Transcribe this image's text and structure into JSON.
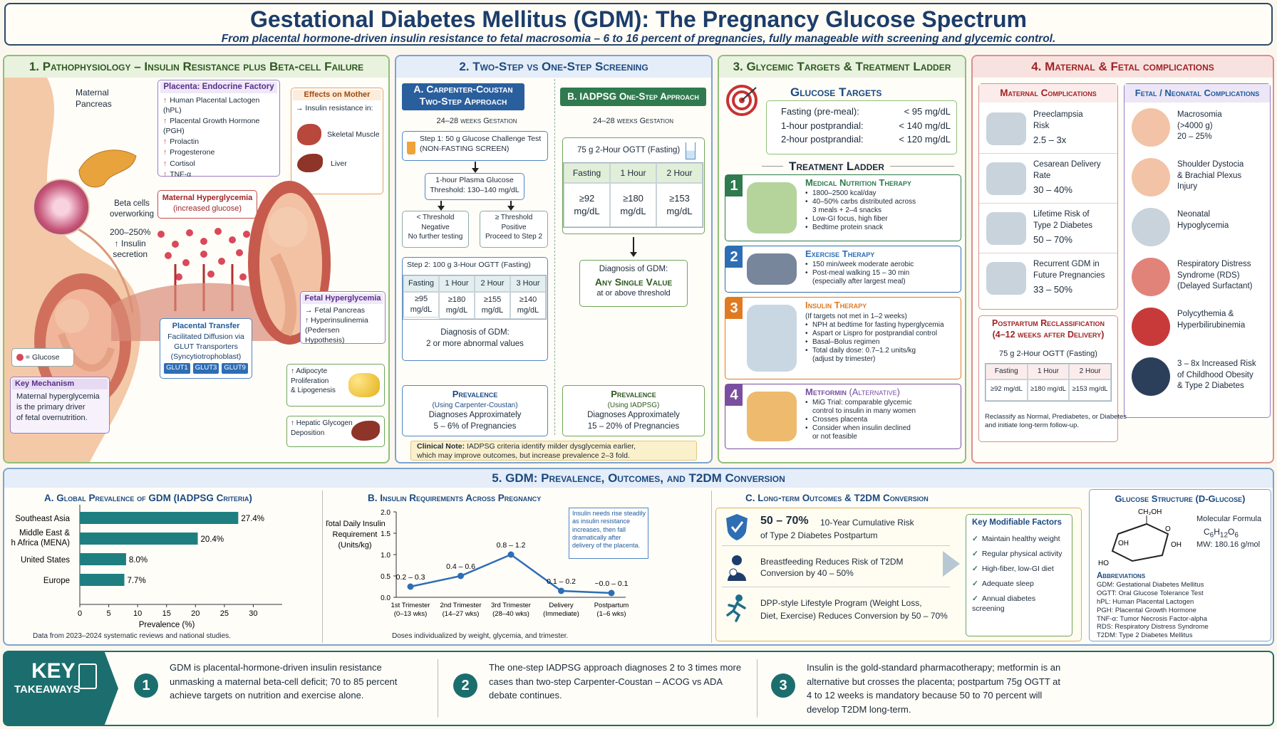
{
  "header": {
    "title": "Gestational Diabetes Mellitus (GDM): The Pregnancy Glucose Spectrum",
    "subtitle": "From placental hormone-driven insulin resistance to fetal macrosomia – 6 to 16 percent of pregnancies, fully manageable with screening and glycemic control."
  },
  "colors": {
    "green": "#5f9a4a",
    "blue": "#2d6eb5",
    "teal": "#1c6e6e",
    "red": "#b83c3c",
    "purple": "#7a4fa0",
    "orange": "#e07a22"
  },
  "p1": {
    "title": "1. Pathophysiology – Insulin Resistance plus Beta-cell Failure",
    "maternal_pancreas": "Maternal\nPancreas",
    "beta_cells": "Beta cells\noverworking",
    "insulin_sec": "200–250%\n↑ Insulin\nsecretion",
    "placenta_title": "Placenta: Endocrine Factory",
    "placenta_items": [
      "Human Placental Lactogen (hPL)",
      "Placental Growth Hormone (PGH)",
      "Prolactin",
      "Progesterone",
      "Cortisol",
      "TNF-α"
    ],
    "effects_title": "Effects on Mother",
    "effects_sub": "→ Insulin resistance in:",
    "effects_items": [
      "Skeletal Muscle",
      "Liver"
    ],
    "hyper_title": "Maternal Hyperglycemia",
    "hyper_sub": "(increased glucose)",
    "transfer_title": "Placental Transfer",
    "transfer_text": "Facilitated Diffusion via\nGLUT Transporters\n(Syncytiotrophoblast)",
    "gluts": [
      "GLUT1",
      "GLUT3",
      "GLUT9"
    ],
    "glucose_legend": "= Glucose",
    "key_title": "Key Mechanism",
    "key_text": "Maternal hyperglycemia\nis the primary driver\nof fetal overnutrition.",
    "fetal_title": "Fetal Hyperglycemia",
    "fetal_items": [
      "→ Fetal Pancreas",
      "↑ Hyperinsulinemia",
      "(Pedersen Hypothesis)"
    ],
    "adipo": "↑ Adipocyte\nProliferation\n& Lipogenesis",
    "hepatic": "↑ Hepatic Glycogen\nDeposition"
  },
  "p2": {
    "title": "2. Two-Step vs One-Step Screening",
    "a_title": "A. Carpenter-Coustan\nTwo-Step Approach",
    "a_weeks": "24–28 weeks Gestation",
    "step1": "Step 1: 50 g Glucose Challenge Test",
    "step1_sub": "(NON-FASTING SCREEN)",
    "threshold": "1-hour Plasma Glucose\nThreshold: 130–140 mg/dL",
    "neg": "< Threshold\nNegative\nNo further testing",
    "pos": "≥ Threshold\nPositive\nProceed to Step 2",
    "step2": "Step 2: 100 g 3-Hour OGTT (Fasting)",
    "step2_head": [
      "Fasting",
      "1 Hour",
      "2 Hour",
      "3 Hour"
    ],
    "step2_vals": [
      "≥95\nmg/dL",
      "≥180\nmg/dL",
      "≥155\nmg/dL",
      "≥140\nmg/dL"
    ],
    "step2_dx": "Diagnosis of GDM:\n2 or more abnormal values",
    "prev_a_title": "Prevalence",
    "prev_a_sub": "(Using Carpenter-Coustan)",
    "prev_a_text": "Diagnoses Approximately\n5 – 6% of Pregnancies",
    "b_title": "B. IADPSG One-Step Approach",
    "b_weeks": "24–28 weeks Gestation",
    "ogtt": "75 g 2-Hour OGTT (Fasting)",
    "b_head": [
      "Fasting",
      "1 Hour",
      "2 Hour"
    ],
    "b_vals": [
      "≥92\nmg/dL",
      "≥180\nmg/dL",
      "≥153\nmg/dL"
    ],
    "b_dx_top": "Diagnosis of GDM:",
    "b_dx_main": "Any Single Value",
    "b_dx_bot": "at or above threshold",
    "prev_b_title": "Prevalence",
    "prev_b_sub": "(Using IADPSG)",
    "prev_b_text": "Diagnoses Approximately\n15 – 20% of Pregnancies",
    "note_label": "Clinical Note:",
    "note": " IADPSG criteria identify milder dysglycemia earlier,\nwhich may improve outcomes, but increase prevalence 2–3 fold."
  },
  "p3": {
    "title": "3. Glycemic Targets & Treatment Ladder",
    "targets_title": "Glucose Targets",
    "targets": [
      {
        "l": "Fasting (pre-meal):",
        "v": "< 95 mg/dL"
      },
      {
        "l": "1-hour postprandial:",
        "v": "< 140 mg/dL"
      },
      {
        "l": "2-hour postprandial:",
        "v": "< 120 mg/dL"
      }
    ],
    "ladder_title": "Treatment Ladder",
    "steps": [
      {
        "n": "1",
        "title": "Medical Nutrition Therapy",
        "items": [
          "1800–2500 kcal/day",
          "40–50% carbs distributed across\n3 meals + 2–4 snacks",
          "Low-GI focus, high fiber",
          "Bedtime protein snack"
        ]
      },
      {
        "n": "2",
        "title": "Exercise Therapy",
        "items": [
          "150 min/week moderate aerobic",
          "Post-meal walking 15 – 30 min\n(especially after largest meal)"
        ]
      },
      {
        "n": "3",
        "title": "Insulin Therapy",
        "sub": "(If targets not met in 1–2 weeks)",
        "items": [
          "NPH at bedtime for fasting hyperglycemia",
          "Aspart or Lispro for postprandial control",
          "Basal–Bolus regimen",
          "Total daily dose: 0.7–1.2 units/kg\n(adjust by trimester)"
        ]
      },
      {
        "n": "4",
        "title": "Metformin",
        "title2": " (Alternative)",
        "items": [
          "MiG Trial: comparable glycemic\ncontrol to insulin in many women",
          "Crosses placenta",
          "Consider when insulin declined\nor not feasible"
        ]
      }
    ]
  },
  "p4": {
    "title": "4. Maternal & Fetal complications",
    "mat_title": "Maternal Complications",
    "mat": [
      {
        "t": "Preeclampsia\nRisk",
        "v": "2.5 – 3x",
        "icon": "blood-pressure-cuff-icon"
      },
      {
        "t": "Cesarean Delivery\nRate",
        "v": "30 – 40%",
        "icon": "scalpel-icon"
      },
      {
        "t": "Lifetime Risk of\nType 2 Diabetes",
        "v": "50 – 70%",
        "icon": "glucometer-icon"
      },
      {
        "t": "Recurrent GDM in\nFuture Pregnancies",
        "v": "33 – 50%",
        "icon": "recurrence-arrows-icon"
      }
    ],
    "fet_title": "Fetal / Neonatal Complications",
    "fet": [
      {
        "t": "Macrosomia\n(>4000 g)\n20 – 25%",
        "icon": "baby-icon"
      },
      {
        "t": "Shoulder Dystocia\n& Brachial Plexus\nInjury",
        "icon": "shoulder-icon"
      },
      {
        "t": "Neonatal\nHypoglycemia",
        "icon": "glucometer-icon"
      },
      {
        "t": "Respiratory Distress\nSyndrome (RDS)\n(Delayed Surfactant)",
        "icon": "lungs-icon"
      },
      {
        "t": "Polycythemia &\nHyperbilirubinemia",
        "icon": "red-cells-icon"
      },
      {
        "t": "3 – 8x Increased Risk\nof Childhood Obesity\n& Type 2 Diabetes",
        "icon": "child-icon"
      }
    ],
    "pp_title": "Postpartum Reclassification\n(4–12 weeks after Delivery)",
    "pp_ogtt": "75 g 2-Hour OGTT (Fasting)",
    "pp_head": [
      "Fasting",
      "1 Hour",
      "2 Hour"
    ],
    "pp_vals": [
      "≥92 mg/dL",
      "≥180 mg/dL",
      "≥153 mg/dL"
    ],
    "pp_note": "Reclassify as Normal, Prediabetes, or Diabetes\nand initiate long-term follow-up."
  },
  "p5": {
    "title": "5. GDM: Prevalence, Outcomes, and T2DM Conversion",
    "a_title": "A. Global Prevalence of GDM (IADPSG Criteria)",
    "a_source": "Data from 2023–2024 systematic reviews and national studies.",
    "b_title": "B. Insulin Requirements Across Pregnancy",
    "b_note": "Insulin needs rise steadily\nas insulin resistance\nincreases, then fall\ndramatically after\ndelivery of the placenta.",
    "b_source": "Doses individualized by weight, glycemia, and trimester.",
    "c_title": "C. Long-term Outcomes & T2DM Conversion",
    "c_items": [
      {
        "big": "50 – 70%",
        "text": "10-Year Cumulative Risk\nof Type 2 Diabetes Postpartum"
      },
      {
        "text": "Breastfeeding Reduces Risk of T2DM\nConversion by 40 – 50%"
      },
      {
        "text": "DPP-style Lifestyle Program (Weight Loss,\nDiet, Exercise) Reduces Conversion by 50 – 70%"
      }
    ],
    "factors_title": "Key Modifiable Factors",
    "factors": [
      "Maintain healthy weight",
      "Regular physical activity",
      "High-fiber, low-GI diet",
      "Adequate sleep",
      "Annual diabetes screening"
    ],
    "glu_title": "Glucose Structure (D-Glucose)",
    "mf_label": "Molecular Formula",
    "mf": "C6H12O6",
    "mw": "MW: 180.16 g/mol",
    "glu_labels": [
      "CH₂OH",
      "O",
      "OH",
      "HO",
      "OH",
      "OH"
    ],
    "abbr_title": "Abbreviations",
    "abbr": [
      "GDM:  Gestational Diabetes Mellitus",
      "OGTT:  Oral Glucose Tolerance Test",
      "hPL:  Human Placental Lactogen",
      "PGH:  Placental Growth Hormone",
      "TNF-α:  Tumor Necrosis Factor-alpha",
      "RDS:  Respiratory Distress Syndrome",
      "T2DM:  Type 2 Diabetes Mellitus"
    ]
  },
  "takeaways": {
    "label1": "KEY",
    "label2": "TAKEAWAYS",
    "items": [
      {
        "n": "1",
        "text": "GDM is placental-hormone-driven insulin resistance\nunmasking a maternal beta-cell deficit; 70 to 85 percent\nachieve targets on nutrition and exercise alone."
      },
      {
        "n": "2",
        "text": "The one-step IADPSG approach diagnoses 2 to 3 times more\ncases than two-step Carpenter-Coustan – ACOG vs ADA\ndebate continues."
      },
      {
        "n": "3",
        "text": "Insulin is the gold-standard pharmacotherapy; metformin is an\nalternative but crosses the placenta; postpartum 75g OGTT at\n4 to 12 weeks is mandatory because 50 to 70 percent will\ndevelop T2DM long-term."
      }
    ]
  },
  "chart_data": [
    {
      "type": "bar",
      "orientation": "horizontal",
      "title": "A. Global Prevalence of GDM (IADPSG Criteria)",
      "categories": [
        "Southeast Asia",
        "Middle East &\nNorth Africa (MENA)",
        "United States",
        "Europe"
      ],
      "values": [
        27.4,
        20.4,
        8.0,
        7.7
      ],
      "value_labels": [
        "27.4%",
        "20.4%",
        "8.0%",
        "7.7%"
      ],
      "xlabel": "Prevalence (%)",
      "xlim": [
        0,
        35
      ],
      "xticks": [
        "0",
        "5",
        "10",
        "15",
        "20",
        "25",
        "30"
      ],
      "color": "#1f7f80"
    },
    {
      "type": "line",
      "title": "B. Insulin Requirements Across Pregnancy",
      "categories": [
        "1st Trimester\n(0–13 wks)",
        "2nd Trimester\n(14–27 wks)",
        "3rd Trimester\n(28–40 wks)",
        "Delivery\n(Immediate)",
        "Postpartum\n(1–6 wks)"
      ],
      "values": [
        0.25,
        0.5,
        1.0,
        0.15,
        0.1
      ],
      "value_labels": [
        "0.2 – 0.3",
        "0.4 – 0.6",
        "0.8 – 1.2",
        "0.1 – 0.2",
        "~0.0 – 0.1"
      ],
      "ylabel": "Total Daily Insulin\nRequirement\n(Units/kg)",
      "ylim": [
        0,
        2.0
      ],
      "yticks": [
        "0.0",
        "0.5",
        "1.0",
        "1.5",
        "2.0"
      ],
      "color": "#2d6eb5"
    }
  ]
}
